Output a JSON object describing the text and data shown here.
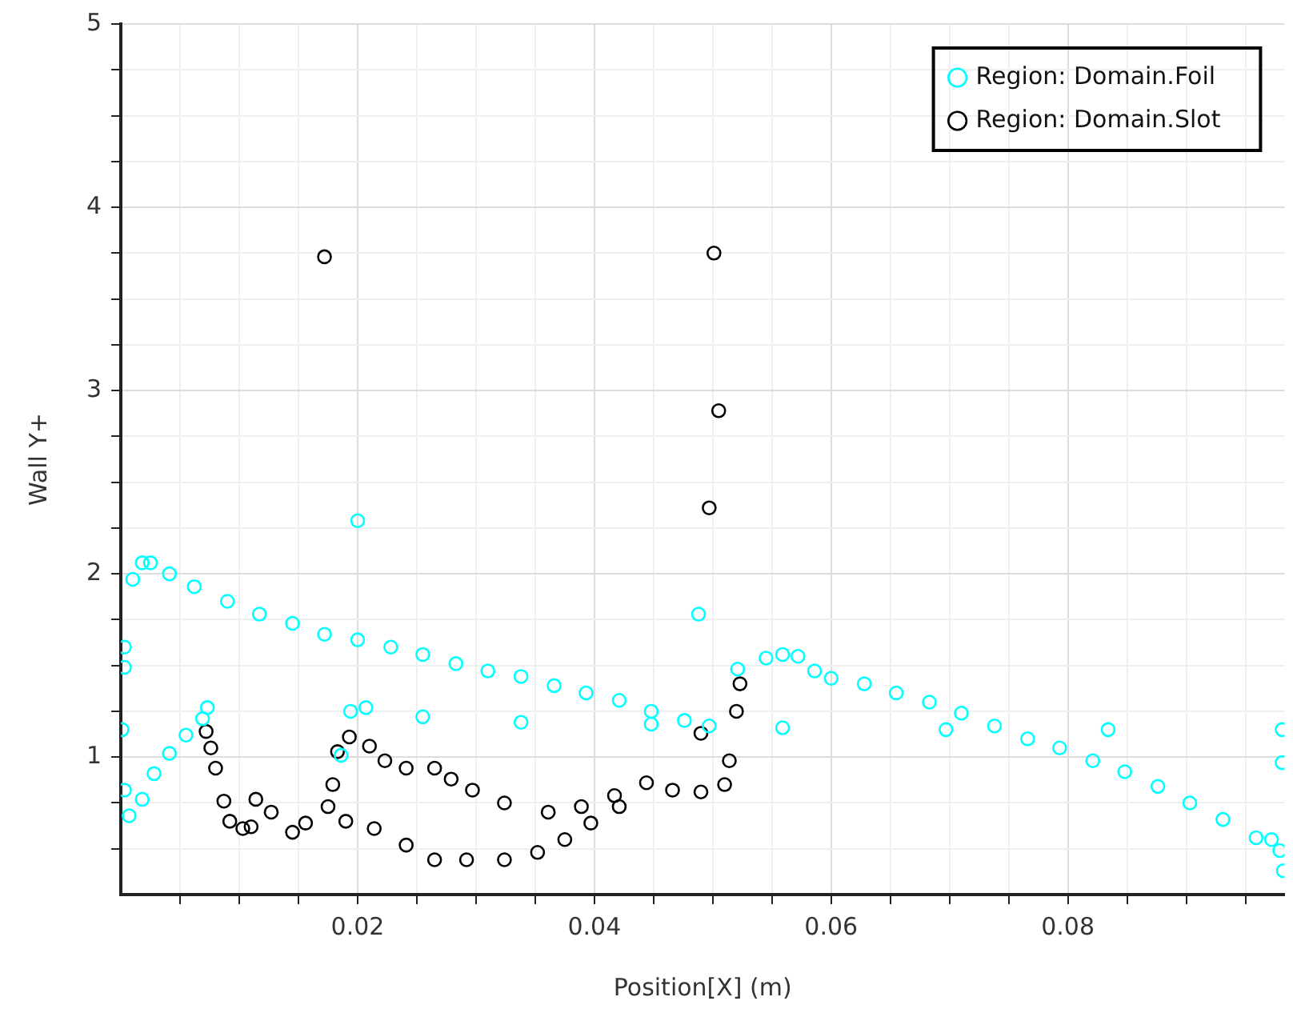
{
  "chart_data": {
    "type": "scatter",
    "xlabel": "Position[X] (m)",
    "ylabel": "Wall Y+",
    "xlim": [
      0,
      0.0983
    ],
    "ylim": [
      0.25,
      5
    ],
    "xticks": [
      {
        "value": 0.005,
        "label": null
      },
      {
        "value": 0.01,
        "label": null
      },
      {
        "value": 0.015,
        "label": null
      },
      {
        "value": 0.02,
        "label": "0.02"
      },
      {
        "value": 0.025,
        "label": null
      },
      {
        "value": 0.03,
        "label": null
      },
      {
        "value": 0.035,
        "label": null
      },
      {
        "value": 0.04,
        "label": "0.04"
      },
      {
        "value": 0.045,
        "label": null
      },
      {
        "value": 0.05,
        "label": null
      },
      {
        "value": 0.055,
        "label": null
      },
      {
        "value": 0.06,
        "label": "0.06"
      },
      {
        "value": 0.065,
        "label": null
      },
      {
        "value": 0.07,
        "label": null
      },
      {
        "value": 0.075,
        "label": null
      },
      {
        "value": 0.08,
        "label": "0.08"
      },
      {
        "value": 0.085,
        "label": null
      },
      {
        "value": 0.09,
        "label": null
      },
      {
        "value": 0.095,
        "label": null
      }
    ],
    "yticks": [
      {
        "value": 0.5,
        "label": null
      },
      {
        "value": 0.75,
        "label": null
      },
      1,
      {
        "value": 1.25,
        "label": null
      },
      {
        "value": 1.5,
        "label": null
      },
      {
        "value": 1.75,
        "label": null
      },
      2,
      {
        "value": 2.25,
        "label": null
      },
      {
        "value": 2.5,
        "label": null
      },
      {
        "value": 2.75,
        "label": null
      },
      3,
      {
        "value": 3.25,
        "label": null
      },
      {
        "value": 3.5,
        "label": null
      },
      {
        "value": 3.75,
        "label": null
      },
      4,
      {
        "value": 4.25,
        "label": null
      },
      {
        "value": 4.5,
        "label": null
      },
      {
        "value": 4.75,
        "label": null
      },
      5
    ],
    "grid": true,
    "legend": "top right",
    "marker": "circle",
    "series": [
      {
        "name": "Region: Domain.Foil",
        "color": "#00ffff",
        "x": [
          0.0003,
          0.0003,
          0.0001,
          0.001,
          0.0018,
          0.0025,
          0.0041,
          0.0062,
          0.009,
          0.0117,
          0.0145,
          0.0172,
          0.02,
          0.0228,
          0.0255,
          0.0283,
          0.031,
          0.0338,
          0.0366,
          0.0393,
          0.0421,
          0.0448,
          0.0476,
          0.0497,
          0.0003,
          0.0007,
          0.0018,
          0.0028,
          0.0041,
          0.0055,
          0.0069,
          0.0073,
          0.0186,
          0.0194,
          0.0207,
          0.0255,
          0.0338,
          0.0448,
          0.0559,
          0.0697,
          0.0834,
          0.0981,
          0.02,
          0.0488,
          0.0981,
          0.0521,
          0.0545,
          0.0559,
          0.0572,
          0.0586,
          0.06,
          0.0628,
          0.0655,
          0.0683,
          0.071,
          0.0738,
          0.0766,
          0.0793,
          0.0821,
          0.0848,
          0.0876,
          0.0903,
          0.0931,
          0.0959,
          0.0972,
          0.0979,
          0.0982
        ],
        "values": [
          1.6,
          1.49,
          1.15,
          1.97,
          2.06,
          2.06,
          2.0,
          1.93,
          1.85,
          1.78,
          1.73,
          1.67,
          1.64,
          1.6,
          1.56,
          1.51,
          1.47,
          1.44,
          1.39,
          1.35,
          1.31,
          1.25,
          1.2,
          1.17,
          0.82,
          0.68,
          0.77,
          0.91,
          1.02,
          1.12,
          1.21,
          1.27,
          1.01,
          1.25,
          1.27,
          1.22,
          1.19,
          1.18,
          1.16,
          1.15,
          1.15,
          1.15,
          2.29,
          1.78,
          0.97,
          1.48,
          1.54,
          1.56,
          1.55,
          1.47,
          1.43,
          1.4,
          1.35,
          1.3,
          1.24,
          1.17,
          1.1,
          1.05,
          0.98,
          0.92,
          0.84,
          0.75,
          0.66,
          0.56,
          0.55,
          0.49,
          0.38
        ]
      },
      {
        "name": "Region: Domain.Slot",
        "color": "#000000",
        "x": [
          0.0072,
          0.0076,
          0.008,
          0.0087,
          0.0092,
          0.0103,
          0.011,
          0.0114,
          0.0127,
          0.0145,
          0.0156,
          0.0175,
          0.0179,
          0.0172,
          0.0183,
          0.0193,
          0.021,
          0.0223,
          0.0241,
          0.0265,
          0.0279,
          0.0297,
          0.0324,
          0.0361,
          0.0389,
          0.0417,
          0.0444,
          0.0466,
          0.049,
          0.051,
          0.0514,
          0.052,
          0.0523,
          0.019,
          0.0214,
          0.0241,
          0.0265,
          0.0292,
          0.0324,
          0.0352,
          0.0375,
          0.0397,
          0.0421,
          0.049,
          0.0497,
          0.0501,
          0.0505
        ],
        "values": [
          1.14,
          1.05,
          0.94,
          0.76,
          0.65,
          0.61,
          0.62,
          0.77,
          0.7,
          0.59,
          0.64,
          0.73,
          0.85,
          3.73,
          1.03,
          1.11,
          1.06,
          0.98,
          0.94,
          0.94,
          0.88,
          0.82,
          0.75,
          0.7,
          0.73,
          0.79,
          0.86,
          0.82,
          0.81,
          0.85,
          0.98,
          1.25,
          1.4,
          0.65,
          0.61,
          0.52,
          0.44,
          0.44,
          0.44,
          0.48,
          0.55,
          0.64,
          0.73,
          1.13,
          2.36,
          3.75,
          2.89
        ]
      }
    ]
  }
}
